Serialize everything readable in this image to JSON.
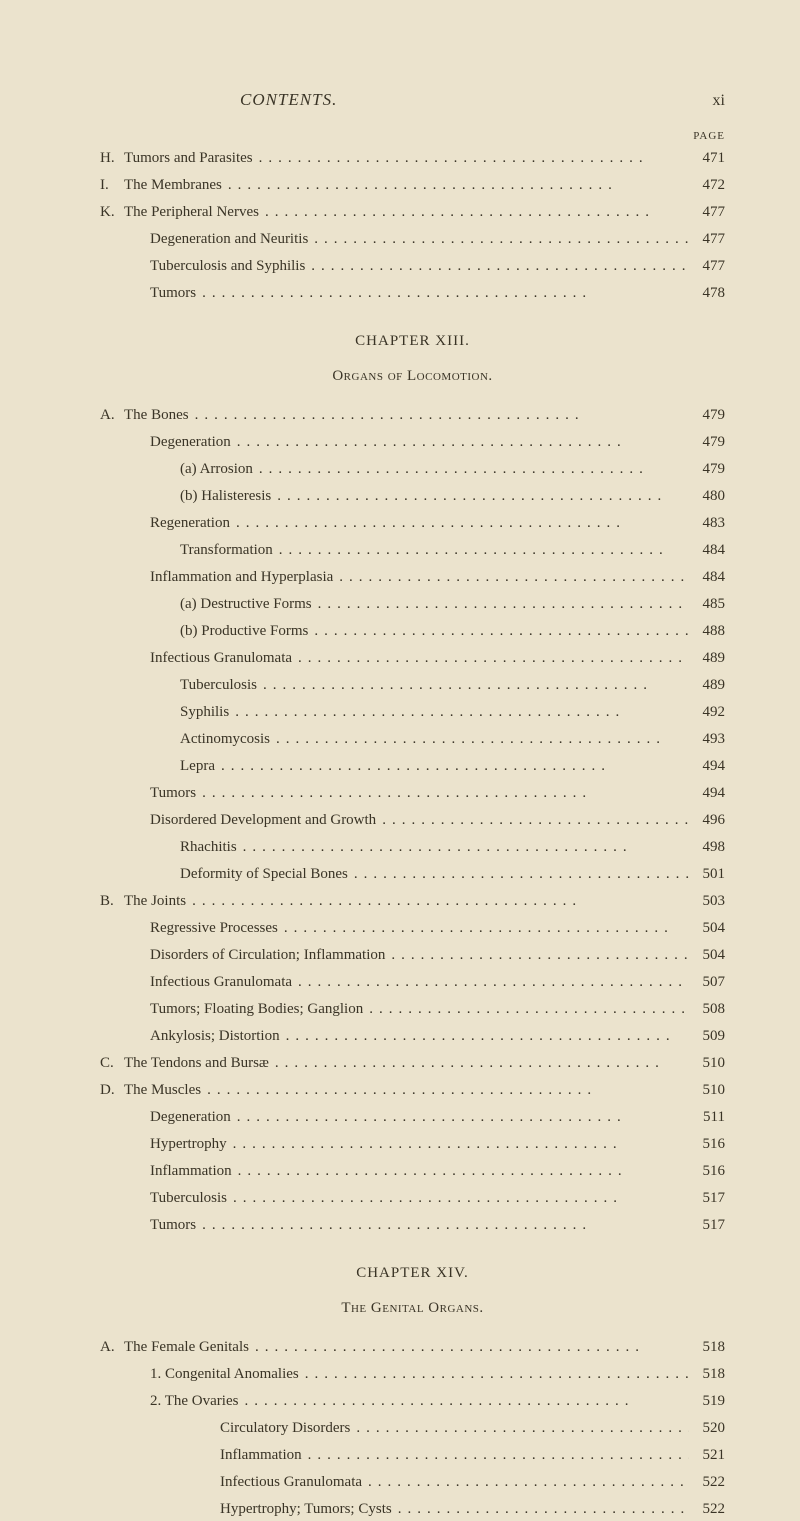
{
  "header": {
    "title": "CONTENTS.",
    "page_roman": "xi",
    "page_label": "PAGE"
  },
  "sections": [
    {
      "entries": [
        {
          "prefix": "H.",
          "text": "Tumors and Parasites",
          "page": "471",
          "indent": 0
        },
        {
          "prefix": "I.",
          "text": "The Membranes",
          "page": "472",
          "indent": 0
        },
        {
          "prefix": "K.",
          "text": "The Peripheral Nerves",
          "page": "477",
          "indent": 0
        },
        {
          "prefix": "",
          "text": "Degeneration and Neuritis",
          "page": "477",
          "indent": 1
        },
        {
          "prefix": "",
          "text": "Tuberculosis and Syphilis",
          "page": "477",
          "indent": 1
        },
        {
          "prefix": "",
          "text": "Tumors",
          "page": "478",
          "indent": 1
        }
      ]
    },
    {
      "chapter": "CHAPTER XIII.",
      "subtitle": "Organs of Locomotion.",
      "entries": [
        {
          "prefix": "A.",
          "text": "The Bones",
          "page": "479",
          "indent": 0
        },
        {
          "prefix": "",
          "text": "Degeneration",
          "page": "479",
          "indent": 1
        },
        {
          "prefix": "",
          "text": "(a) Arrosion",
          "page": "479",
          "indent": 2
        },
        {
          "prefix": "",
          "text": "(b) Halisteresis",
          "page": "480",
          "indent": 2
        },
        {
          "prefix": "",
          "text": "Regeneration",
          "page": "483",
          "indent": 1
        },
        {
          "prefix": "",
          "text": "Transformation",
          "page": "484",
          "indent": 2
        },
        {
          "prefix": "",
          "text": "Inflammation and Hyperplasia",
          "page": "484",
          "indent": 1
        },
        {
          "prefix": "",
          "text": "(a) Destructive Forms",
          "page": "485",
          "indent": 2
        },
        {
          "prefix": "",
          "text": "(b) Productive Forms",
          "page": "488",
          "indent": 2
        },
        {
          "prefix": "",
          "text": "Infectious Granulomata",
          "page": "489",
          "indent": 1
        },
        {
          "prefix": "",
          "text": "Tuberculosis",
          "page": "489",
          "indent": 2
        },
        {
          "prefix": "",
          "text": "Syphilis",
          "page": "492",
          "indent": 2
        },
        {
          "prefix": "",
          "text": "Actinomycosis",
          "page": "493",
          "indent": 2
        },
        {
          "prefix": "",
          "text": "Lepra",
          "page": "494",
          "indent": 2
        },
        {
          "prefix": "",
          "text": "Tumors",
          "page": "494",
          "indent": 1
        },
        {
          "prefix": "",
          "text": "Disordered Development and Growth",
          "page": "496",
          "indent": 1
        },
        {
          "prefix": "",
          "text": "Rhachitis",
          "page": "498",
          "indent": 2
        },
        {
          "prefix": "",
          "text": "Deformity of Special Bones",
          "page": "501",
          "indent": 2
        },
        {
          "prefix": "B.",
          "text": "The Joints",
          "page": "503",
          "indent": 0
        },
        {
          "prefix": "",
          "text": "Regressive Processes",
          "page": "504",
          "indent": 1
        },
        {
          "prefix": "",
          "text": "Disorders of Circulation; Inflammation",
          "page": "504",
          "indent": 1
        },
        {
          "prefix": "",
          "text": "Infectious Granulomata",
          "page": "507",
          "indent": 1
        },
        {
          "prefix": "",
          "text": "Tumors; Floating Bodies; Ganglion",
          "page": "508",
          "indent": 1
        },
        {
          "prefix": "",
          "text": "Ankylosis; Distortion",
          "page": "509",
          "indent": 1
        },
        {
          "prefix": "C.",
          "text": "The Tendons and Bursæ",
          "page": "510",
          "indent": 0
        },
        {
          "prefix": "D.",
          "text": "The Muscles",
          "page": "510",
          "indent": 0
        },
        {
          "prefix": "",
          "text": "Degeneration",
          "page": "511",
          "indent": 1
        },
        {
          "prefix": "",
          "text": "Hypertrophy",
          "page": "516",
          "indent": 1
        },
        {
          "prefix": "",
          "text": "Inflammation",
          "page": "516",
          "indent": 1
        },
        {
          "prefix": "",
          "text": "Tuberculosis",
          "page": "517",
          "indent": 1
        },
        {
          "prefix": "",
          "text": "Tumors",
          "page": "517",
          "indent": 1
        }
      ]
    },
    {
      "chapter": "CHAPTER XIV.",
      "subtitle": "The Genital Organs.",
      "entries": [
        {
          "prefix": "A.",
          "text": "The Female Genitals",
          "page": "518",
          "indent": 0
        },
        {
          "prefix": "",
          "text": "1. Congenital Anomalies",
          "page": "518",
          "indent": 1
        },
        {
          "prefix": "",
          "text": "2. The Ovaries",
          "page": "519",
          "indent": 1
        },
        {
          "prefix": "",
          "text": "Circulatory Disorders",
          "page": "520",
          "indent": 3
        },
        {
          "prefix": "",
          "text": "Inflammation",
          "page": "521",
          "indent": 3
        },
        {
          "prefix": "",
          "text": "Infectious Granulomata",
          "page": "522",
          "indent": 3
        },
        {
          "prefix": "",
          "text": "Hypertrophy; Tumors; Cysts",
          "page": "522",
          "indent": 3
        }
      ]
    }
  ],
  "dots": "........................................"
}
